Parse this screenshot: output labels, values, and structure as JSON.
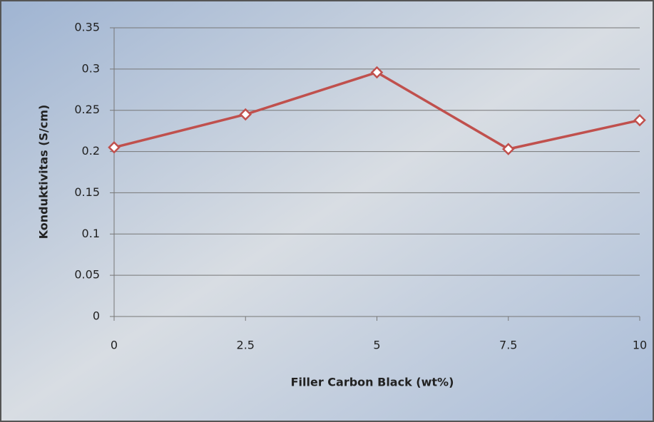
{
  "chart_data": {
    "type": "line",
    "x_label": "Filler Carbon Black (wt%)",
    "y_label": "Konduktivitas (S/cm)",
    "x": [
      0,
      2.5,
      5,
      7.5,
      10
    ],
    "series": [
      {
        "color": "#c0504d",
        "values": [
          0.205,
          0.245,
          0.296,
          0.203,
          0.238
        ]
      }
    ],
    "xlim": [
      0,
      10
    ],
    "xticks": [
      0,
      2.5,
      5,
      7.5,
      10
    ],
    "ylim": [
      0,
      0.35
    ],
    "yticks": [
      0,
      0.05,
      0.1,
      0.15,
      0.2,
      0.25,
      0.3,
      0.35
    ],
    "grid": true
  }
}
